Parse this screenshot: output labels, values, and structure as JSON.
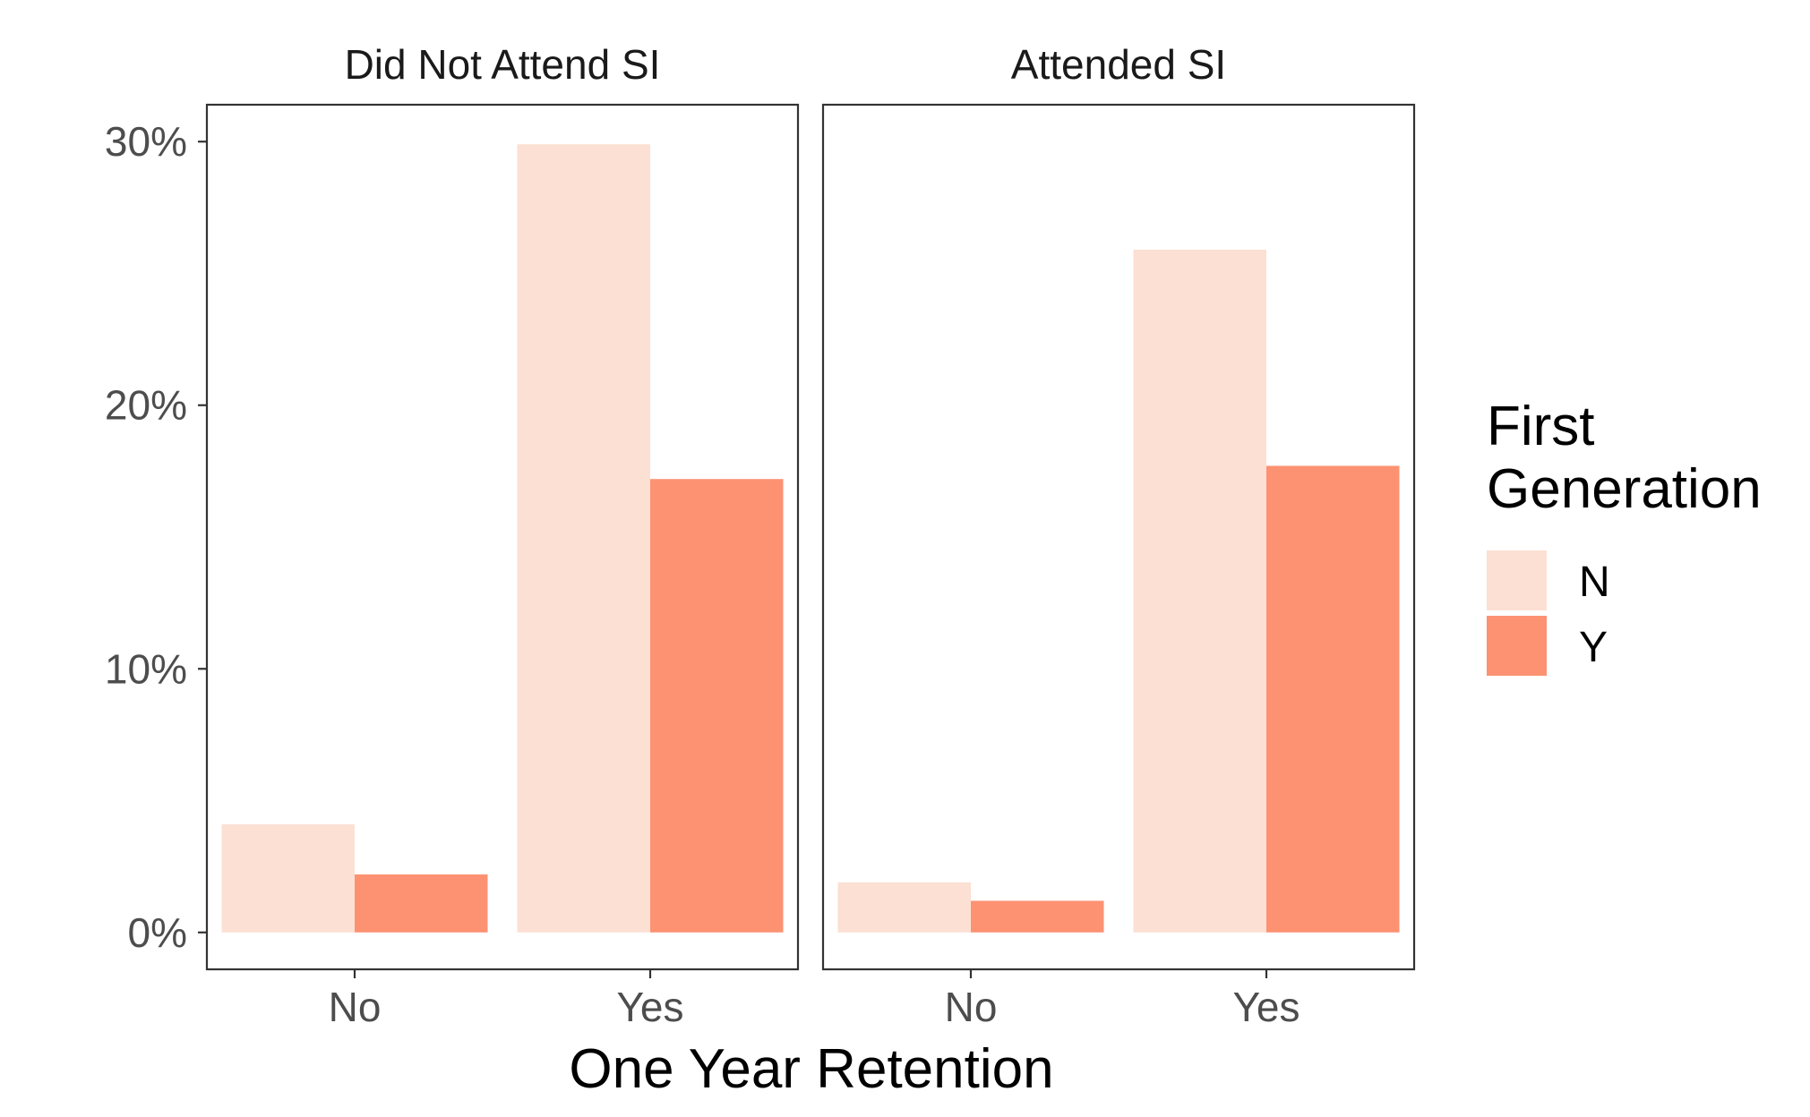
{
  "chart_data": {
    "type": "bar",
    "facets": [
      "Did Not Attend SI",
      "Attended SI"
    ],
    "categories": [
      "No",
      "Yes"
    ],
    "series": [
      {
        "name": "N",
        "color": "#FCE0D3",
        "values": [
          [
            4.1,
            29.9
          ],
          [
            1.9,
            25.9
          ]
        ]
      },
      {
        "name": "Y",
        "color": "#FC9272",
        "values": [
          [
            2.2,
            17.2
          ],
          [
            1.2,
            17.7
          ]
        ]
      }
    ],
    "xlabel": "One Year Retention",
    "ylabel": "",
    "ylim": [
      -1.4,
      31.4
    ],
    "y_ticks": [
      0,
      10,
      20,
      30
    ],
    "y_tick_labels": [
      "0%",
      "10%",
      "20%",
      "30%"
    ],
    "legend": {
      "title_lines": [
        "First",
        "Generation"
      ],
      "position": "right"
    },
    "grid": false
  }
}
